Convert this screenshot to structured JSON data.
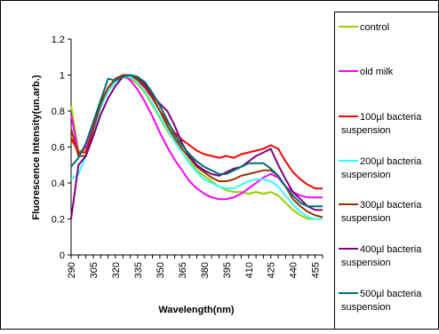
{
  "chart_data": {
    "type": "line",
    "title": "",
    "xlabel": "Wavelength(nm)",
    "ylabel": "Fluorescence Intensity(un.arb.)",
    "xlim": [
      290,
      460
    ],
    "ylim": [
      0,
      1.2
    ],
    "grid": false,
    "legend": "right",
    "x_ticks": [
      290,
      305,
      320,
      335,
      350,
      365,
      380,
      395,
      410,
      425,
      440,
      455
    ],
    "y_ticks": [
      0,
      0.2,
      0.4,
      0.6,
      0.8,
      1,
      1.2
    ],
    "y_tick_labels": [
      "0",
      "0.2",
      "0.4",
      "0.6",
      "0.8",
      "1",
      "1.2"
    ],
    "x": [
      290,
      295,
      300,
      305,
      310,
      315,
      320,
      325,
      330,
      335,
      340,
      345,
      350,
      355,
      360,
      365,
      370,
      375,
      380,
      385,
      390,
      395,
      400,
      405,
      410,
      415,
      420,
      425,
      430,
      435,
      440,
      445,
      450,
      455,
      460
    ],
    "series": [
      {
        "name": "control",
        "color": "#99cc00",
        "values": [
          0.83,
          0.58,
          0.58,
          0.7,
          0.82,
          0.92,
          0.97,
          0.99,
          0.98,
          0.95,
          0.9,
          0.83,
          0.76,
          0.69,
          0.63,
          0.57,
          0.52,
          0.47,
          0.44,
          0.41,
          0.38,
          0.36,
          0.35,
          0.35,
          0.34,
          0.35,
          0.34,
          0.35,
          0.33,
          0.29,
          0.25,
          0.22,
          0.2,
          0.2,
          0.2
        ]
      },
      {
        "name": "old milk",
        "color": "#ff00ff",
        "values": [
          0.78,
          0.56,
          0.6,
          0.72,
          0.85,
          0.93,
          0.98,
          1.0,
          0.97,
          0.92,
          0.85,
          0.77,
          0.68,
          0.6,
          0.53,
          0.47,
          0.41,
          0.37,
          0.34,
          0.32,
          0.31,
          0.31,
          0.32,
          0.34,
          0.37,
          0.4,
          0.43,
          0.45,
          0.43,
          0.38,
          0.35,
          0.33,
          0.32,
          0.32,
          0.32
        ]
      },
      {
        "name": "100µl bacterial suspension",
        "color": "#ff0000",
        "values": [
          0.65,
          0.57,
          0.57,
          0.7,
          0.84,
          0.93,
          0.98,
          1.0,
          1.0,
          0.97,
          0.93,
          0.87,
          0.8,
          0.74,
          0.68,
          0.64,
          0.61,
          0.58,
          0.56,
          0.55,
          0.54,
          0.55,
          0.54,
          0.56,
          0.57,
          0.58,
          0.59,
          0.61,
          0.59,
          0.52,
          0.46,
          0.42,
          0.39,
          0.37,
          0.37
        ]
      },
      {
        "name": "200µl bacterial suspension",
        "color": "#33ffff",
        "values": [
          0.42,
          0.45,
          0.55,
          0.68,
          0.82,
          0.91,
          0.96,
          0.99,
          0.99,
          0.96,
          0.91,
          0.84,
          0.77,
          0.7,
          0.63,
          0.57,
          0.51,
          0.46,
          0.42,
          0.4,
          0.38,
          0.37,
          0.37,
          0.39,
          0.41,
          0.42,
          0.42,
          0.41,
          0.38,
          0.33,
          0.28,
          0.24,
          0.21,
          0.2,
          0.2
        ]
      },
      {
        "name": "300µl bacterial suspension",
        "color": "#993300",
        "values": [
          0.7,
          0.55,
          0.55,
          0.7,
          0.84,
          0.93,
          0.98,
          1.0,
          1.0,
          0.98,
          0.94,
          0.88,
          0.8,
          0.72,
          0.65,
          0.59,
          0.54,
          0.49,
          0.46,
          0.43,
          0.41,
          0.41,
          0.42,
          0.44,
          0.45,
          0.46,
          0.47,
          0.47,
          0.44,
          0.38,
          0.31,
          0.27,
          0.24,
          0.22,
          0.21
        ]
      },
      {
        "name": "400µl bacterial suspension",
        "color": "#800080",
        "values": [
          0.2,
          0.5,
          0.55,
          0.66,
          0.78,
          0.87,
          0.94,
          0.99,
          1.0,
          0.99,
          0.95,
          0.89,
          0.84,
          0.8,
          0.72,
          0.62,
          0.55,
          0.5,
          0.47,
          0.45,
          0.44,
          0.46,
          0.48,
          0.49,
          0.52,
          0.55,
          0.57,
          0.59,
          0.5,
          0.42,
          0.35,
          0.31,
          0.27,
          0.25,
          0.25
        ]
      },
      {
        "name": "500µl bacterial suspension",
        "color": "#007070",
        "values": [
          0.49,
          0.54,
          0.62,
          0.74,
          0.86,
          0.98,
          0.97,
          0.99,
          1.0,
          0.99,
          0.96,
          0.9,
          0.83,
          0.75,
          0.67,
          0.61,
          0.56,
          0.52,
          0.49,
          0.47,
          0.45,
          0.45,
          0.47,
          0.49,
          0.51,
          0.51,
          0.51,
          0.48,
          0.44,
          0.38,
          0.33,
          0.29,
          0.27,
          0.27,
          0.27
        ]
      }
    ]
  },
  "legend_entries": [
    {
      "label_line1": "control",
      "label_line2": ""
    },
    {
      "label_line1": "old milk",
      "label_line2": ""
    },
    {
      "label_line1": "100µl bacteria",
      "label_line2": "suspension"
    },
    {
      "label_line1": "200µl bacteria",
      "label_line2": "suspension"
    },
    {
      "label_line1": "300µl bacteria",
      "label_line2": "suspension"
    },
    {
      "label_line1": "400µl bacteria",
      "label_line2": "suspension"
    },
    {
      "label_line1": "500µl bacteria",
      "label_line2": "suspension"
    }
  ]
}
